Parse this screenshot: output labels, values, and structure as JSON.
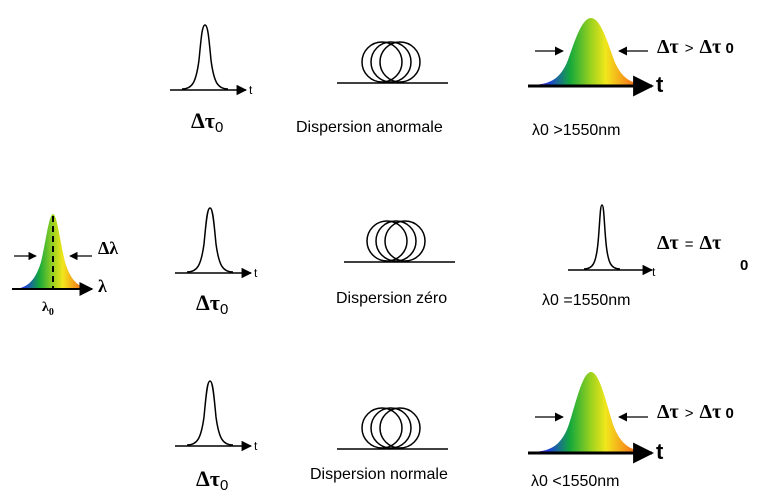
{
  "source": {
    "delta_lambda_label": "Δλ",
    "lambda_axis_label": "λ",
    "lambda0_label": "λ",
    "lambda0_sub": "0",
    "colors": [
      "#7a1fa2",
      "#1f3fd8",
      "#14a83c",
      "#9bd21e",
      "#f2e61c",
      "#f58a1a",
      "#e02a1c"
    ]
  },
  "rows": [
    {
      "input": {
        "t_label": "t",
        "delta_tau": "Δτ",
        "delta_tau_sub": "0"
      },
      "fiber_label": "Dispersion anormale",
      "wavelength_label": "λ0 >1550nm",
      "output": {
        "type": "broadened",
        "t_label": "t"
      },
      "relation": {
        "lhs": "Δτ",
        "op": ">",
        "rhs": "Δτ",
        "rhs_sub": " 0"
      }
    },
    {
      "input": {
        "t_label": "t",
        "delta_tau": "Δτ",
        "delta_tau_sub": "0"
      },
      "fiber_label": "Dispersion zéro",
      "wavelength_label": "λ0 =1550nm",
      "output": {
        "type": "narrow",
        "t_label": "t"
      },
      "relation": {
        "lhs": "Δτ",
        "op": "=",
        "rhs": "Δτ",
        "rhs_sub": "0"
      }
    },
    {
      "input": {
        "t_label": "t",
        "delta_tau": "Δτ",
        "delta_tau_sub": "0"
      },
      "fiber_label": "Dispersion normale",
      "wavelength_label": "λ0 <1550nm",
      "output": {
        "type": "broadened",
        "t_label": "t"
      },
      "relation": {
        "lhs": "Δτ",
        "op": ">",
        "rhs": "Δτ",
        "rhs_sub": " 0"
      }
    }
  ]
}
